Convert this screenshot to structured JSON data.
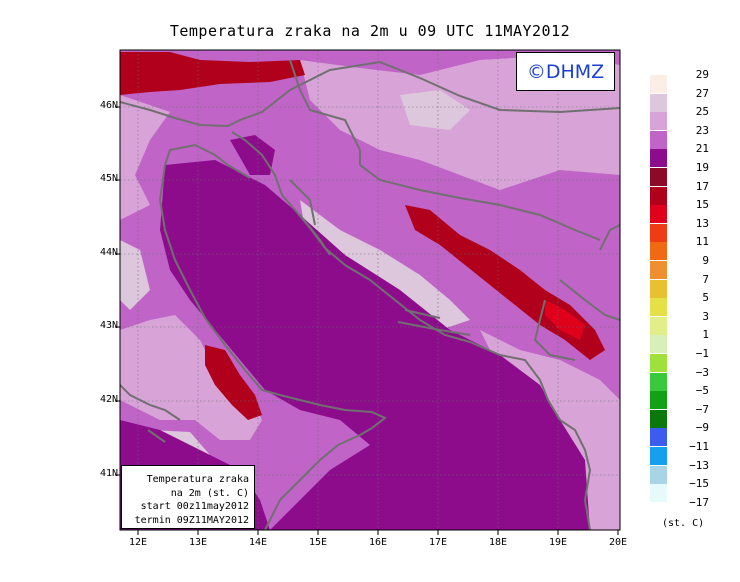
{
  "title": "Temperatura zraka na 2m u 09 UTC 11MAY2012",
  "credit": "©DHMZ",
  "info_box": {
    "line1": "Temperatura zraka",
    "line2": "na 2m (st. C)",
    "line3": "start 00z11may2012",
    "line4": "termin 09Z11MAY2012"
  },
  "axes": {
    "lat_labels": [
      "46N",
      "45N",
      "44N",
      "43N",
      "42N",
      "41N"
    ],
    "lon_labels": [
      "12E",
      "13E",
      "14E",
      "15E",
      "16E",
      "17E",
      "18E",
      "19E",
      "20E"
    ]
  },
  "legend": {
    "units": "(st. C)",
    "items": [
      {
        "label": "29",
        "color": "#fbeee6"
      },
      {
        "label": "27",
        "color": "#dcc7dc"
      },
      {
        "label": "25",
        "color": "#d8a4d8"
      },
      {
        "label": "23",
        "color": "#c064c8"
      },
      {
        "label": "21",
        "color": "#8c0c8c"
      },
      {
        "label": "19",
        "color": "#8c0a28"
      },
      {
        "label": "17",
        "color": "#b0001c"
      },
      {
        "label": "15",
        "color": "#e0001c"
      },
      {
        "label": "13",
        "color": "#f03c14"
      },
      {
        "label": "11",
        "color": "#f06a14"
      },
      {
        "label": "9",
        "color": "#ee9030"
      },
      {
        "label": "7",
        "color": "#e8c030"
      },
      {
        "label": "5",
        "color": "#e6e048"
      },
      {
        "label": "3",
        "color": "#e2ee88"
      },
      {
        "label": "1",
        "color": "#d8f0b8"
      },
      {
        "label": "−1",
        "color": "#a0e03c"
      },
      {
        "label": "−3",
        "color": "#3cc83c"
      },
      {
        "label": "−5",
        "color": "#14a014"
      },
      {
        "label": "−7",
        "color": "#0a780a"
      },
      {
        "label": "−9",
        "color": "#3c5cf0"
      },
      {
        "label": "−11",
        "color": "#14a0ee"
      },
      {
        "label": "−13",
        "color": "#a8d4e6"
      },
      {
        "label": "−15",
        "color": "#e6fafa"
      }
    ],
    "bottom_label": "−17"
  },
  "colors": {
    "sea": "#8c0c8c",
    "land_warm": "#c064c8",
    "land_mild": "#d8a4d8",
    "land_cool": "#dcc7dc",
    "hot": "#b0001c",
    "border": "#707070",
    "grid": "#6b6b6b"
  }
}
